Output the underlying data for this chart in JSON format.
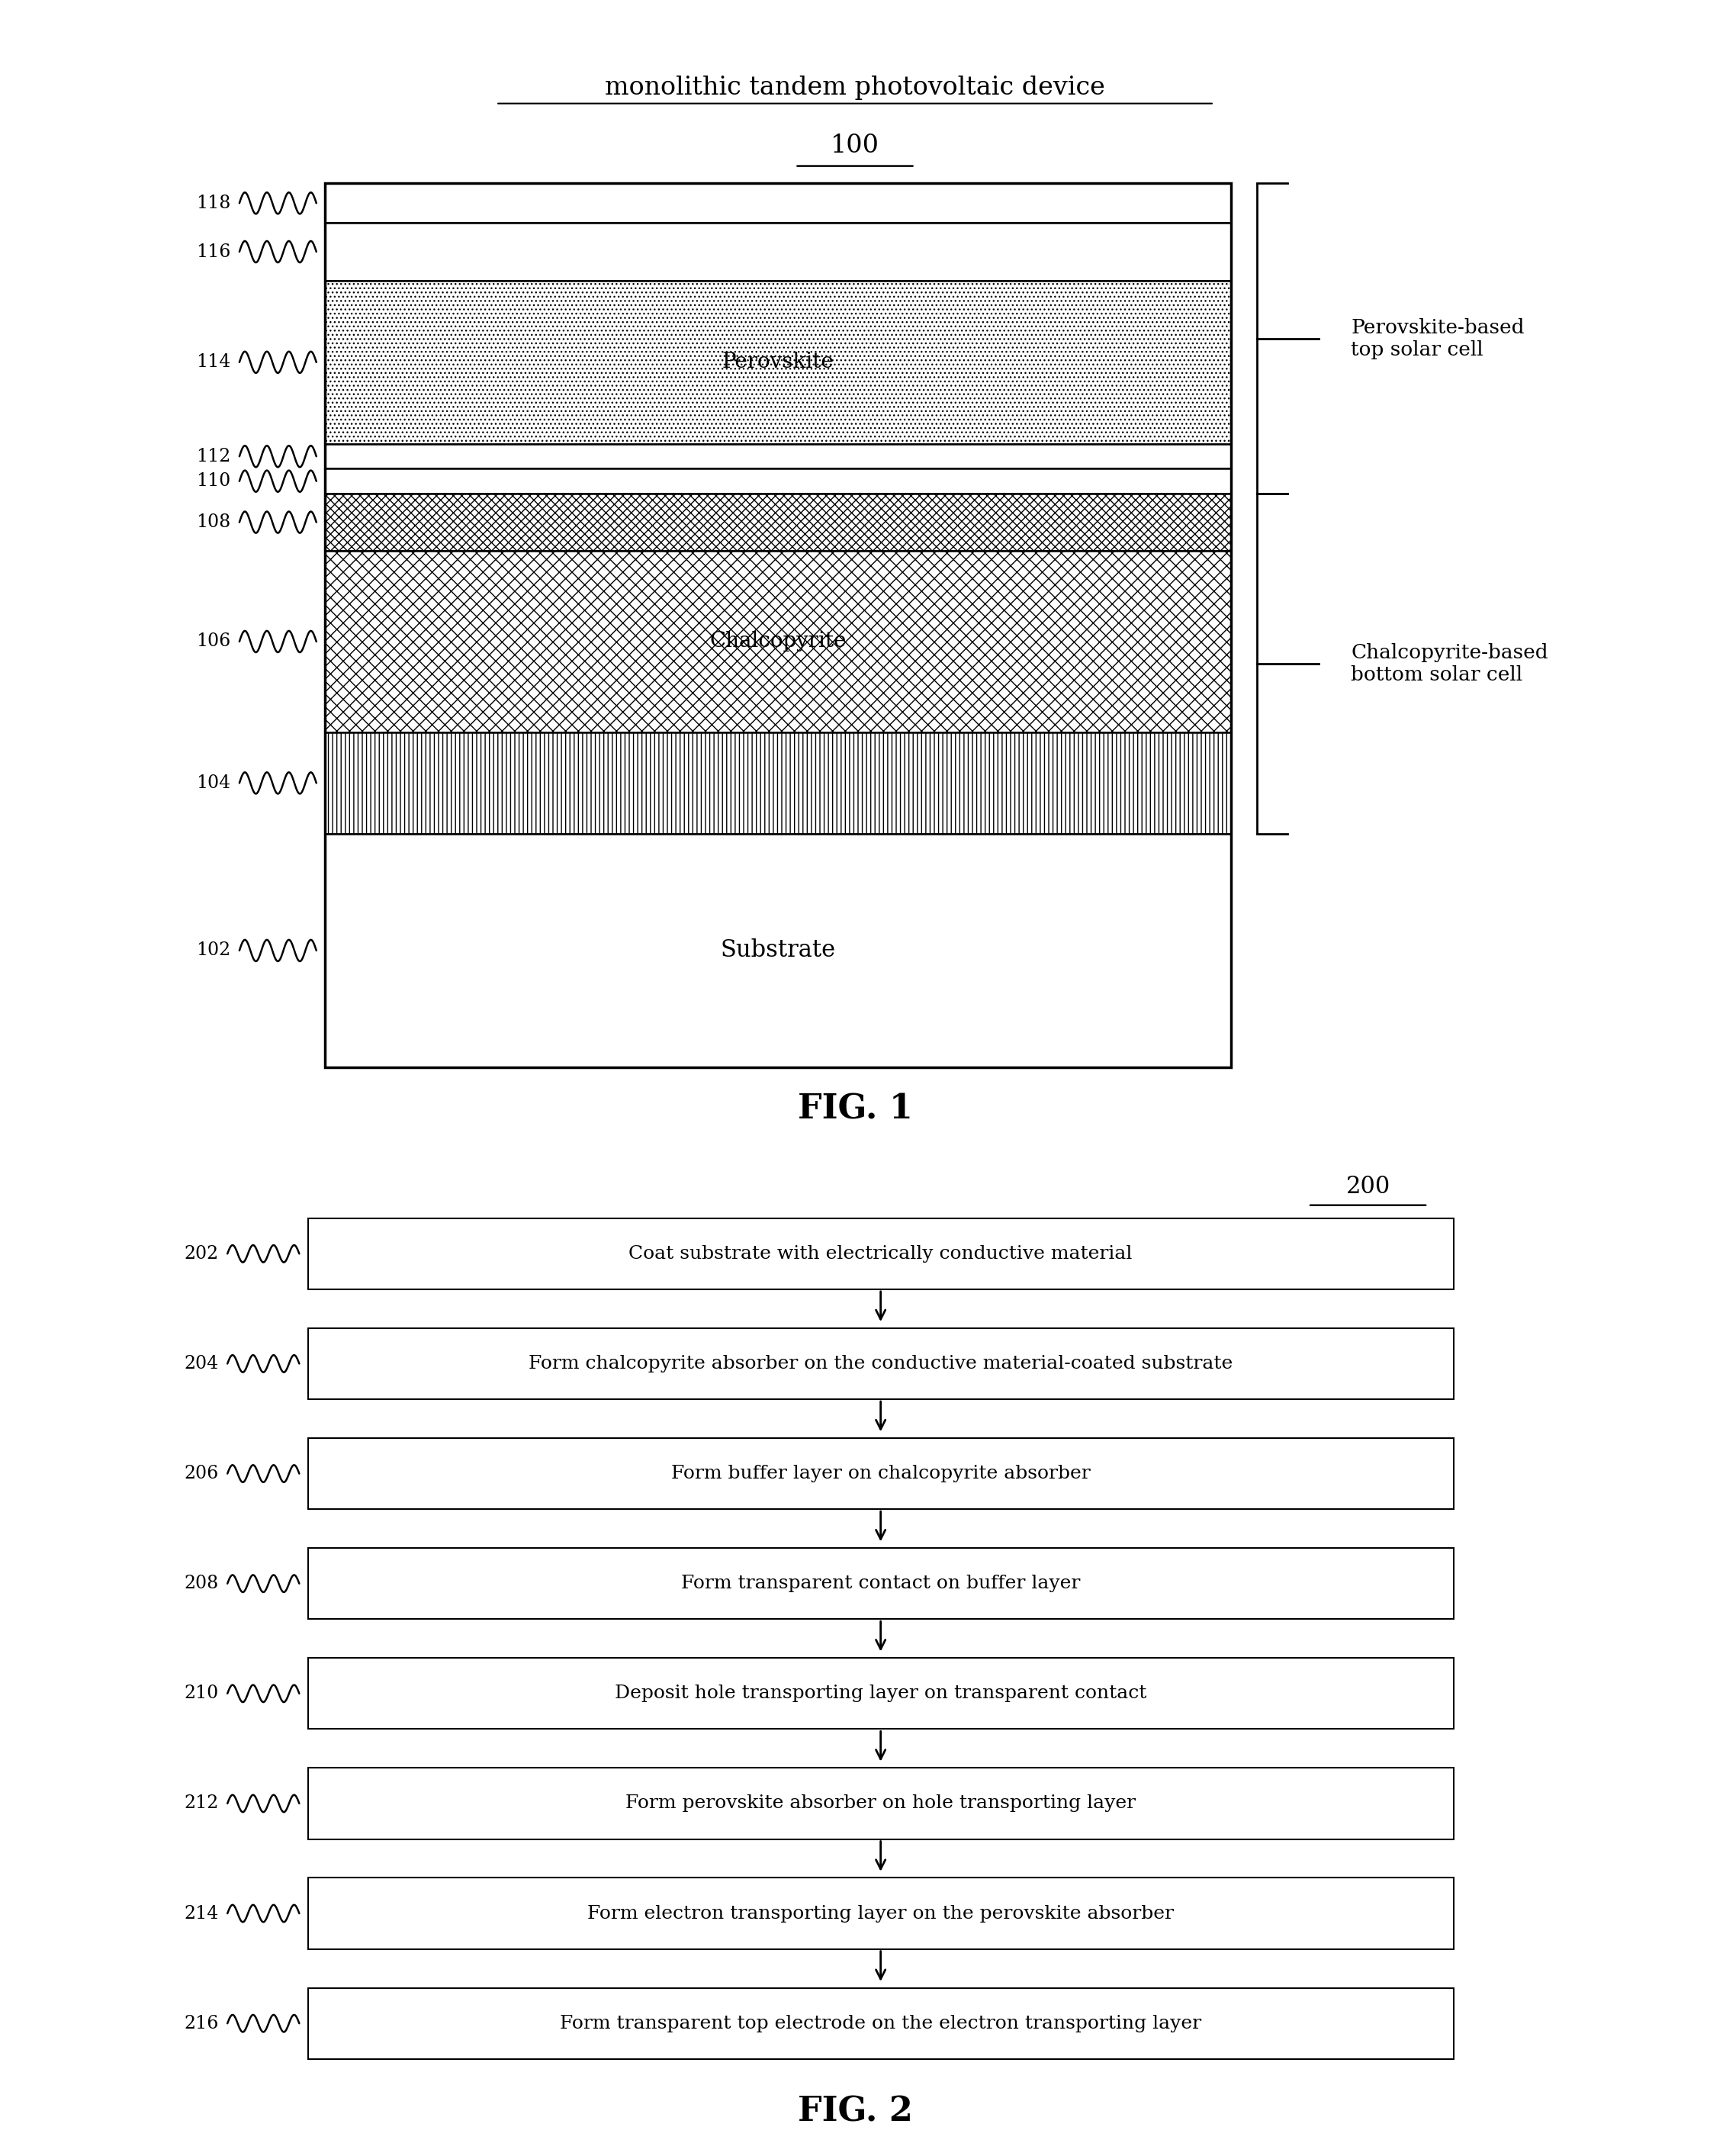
{
  "fig1_title": "monolithic tandem photovoltaic device",
  "fig1_label": "100",
  "fig2_label": "200",
  "fig1_caption": "FIG. 1",
  "fig2_caption": "FIG. 2",
  "perovskite_bracket_label": "Perovskite-based\ntop solar cell",
  "chalcopyrite_bracket_label": "Chalcopyrite-based\nbottom solar cell",
  "flow_steps": [
    {
      "label": "202",
      "text": "Coat substrate with electrically conductive material"
    },
    {
      "label": "204",
      "text": "Form chalcopyrite absorber on the conductive material-coated substrate"
    },
    {
      "label": "206",
      "text": "Form buffer layer on chalcopyrite absorber"
    },
    {
      "label": "208",
      "text": "Form transparent contact on buffer layer"
    },
    {
      "label": "210",
      "text": "Deposit hole transporting layer on transparent contact"
    },
    {
      "label": "212",
      "text": "Form perovskite absorber on hole transporting layer"
    },
    {
      "label": "214",
      "text": "Form electron transporting layer on the perovskite absorber"
    },
    {
      "label": "216",
      "text": "Form transparent top electrode on the electron transporting layer"
    }
  ]
}
